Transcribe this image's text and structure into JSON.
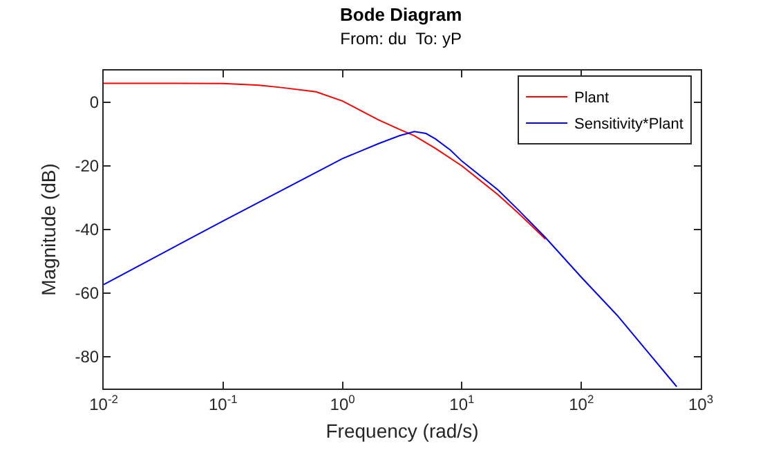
{
  "chart_data": {
    "type": "line",
    "title": "Bode Diagram",
    "subtitle": "From: du  To: yP",
    "xlabel": "Frequency (rad/s)",
    "ylabel": "Magnitude (dB)",
    "log": "x",
    "xlim": [
      0.01,
      1000
    ],
    "xticks": [
      {
        "value": 0.01,
        "label": "10$^{-2}$"
      },
      {
        "value": 0.1,
        "label": "10$^{-1}$"
      },
      {
        "value": 1,
        "label": "10$^{0}$"
      },
      {
        "value": 10,
        "label": "10$^{1}$"
      },
      {
        "value": 100,
        "label": "10$^{2}$"
      },
      {
        "value": 1000,
        "label": "10$^{3}$"
      }
    ],
    "ylim": [
      -90,
      10
    ],
    "yticks": [
      -80,
      -60,
      -40,
      -20,
      0
    ],
    "grid": false,
    "legend": "top right",
    "line_style": "solid",
    "marker": "none",
    "series": [
      {
        "name": "Plant",
        "color": "#ff0000",
        "x": [
          0.01,
          0.03,
          0.1,
          0.2,
          0.3,
          0.6,
          1,
          2,
          3,
          4,
          6,
          10,
          20,
          30,
          50
        ],
        "values": [
          6,
          6,
          5.9,
          5.4,
          4.7,
          3.3,
          0.4,
          -5.5,
          -8.5,
          -10.5,
          -14.5,
          -20,
          -29,
          -35,
          -43
        ]
      },
      {
        "name": "Sensitivity*Plant",
        "color": "#0000ff",
        "x": [
          0.01,
          0.1,
          1,
          2,
          3,
          4,
          5,
          6,
          8,
          10,
          20,
          30,
          50,
          100,
          200,
          629
        ],
        "values": [
          -57.3,
          -37.3,
          -17.7,
          -13,
          -10.5,
          -9.2,
          -9.8,
          -11.5,
          -15,
          -18.5,
          -27.5,
          -34,
          -42.5,
          -55,
          -67,
          -89.4
        ]
      }
    ]
  }
}
